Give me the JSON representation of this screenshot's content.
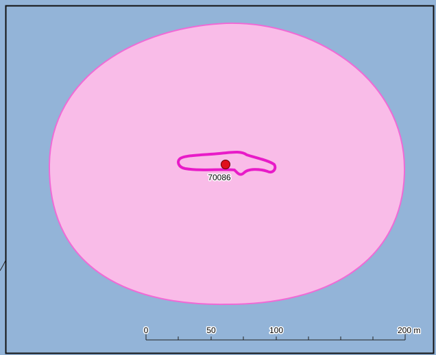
{
  "map": {
    "point_label": "70086",
    "scale_bar": {
      "labels": [
        "0",
        "50",
        "100",
        "200 m"
      ]
    }
  }
}
